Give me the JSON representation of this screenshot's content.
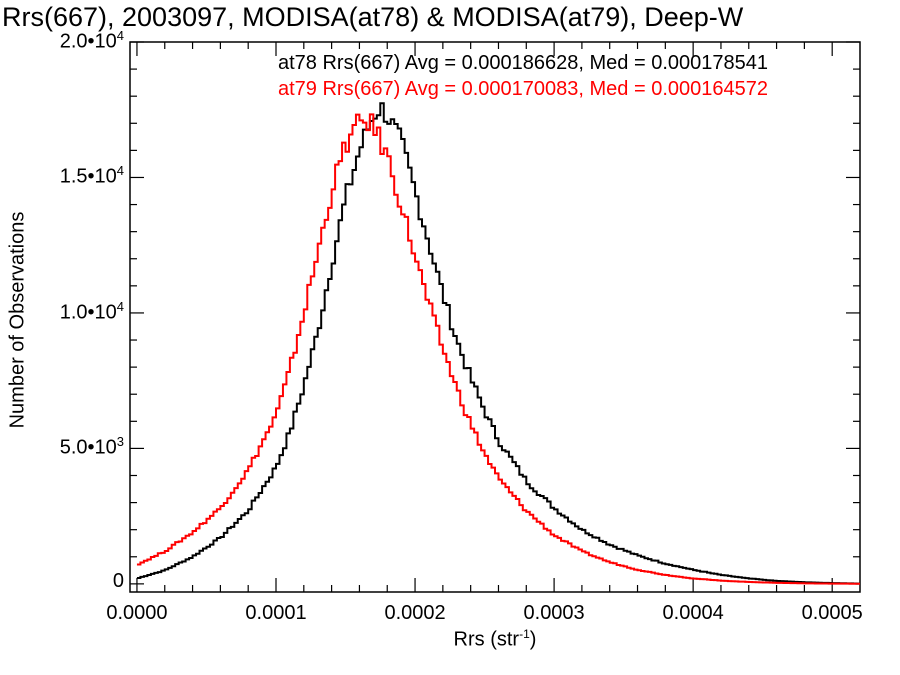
{
  "chart_data": {
    "type": "line",
    "title": "Rrs(667), 2003097, MODISA(at78) & MODISA(at79), Deep-W",
    "xlabel_main": "Rrs (str",
    "xlabel_exp": "-1",
    "xlabel_close": ")",
    "ylabel": "Number of Observations",
    "xlim": [
      -5e-06,
      0.00052
    ],
    "ylim": [
      -300,
      20000
    ],
    "x_ticks": [
      {
        "value": 0.0,
        "label": "0.0000"
      },
      {
        "value": 0.0001,
        "label": "0.0001"
      },
      {
        "value": 0.0002,
        "label": "0.0002"
      },
      {
        "value": 0.0003,
        "label": "0.0003"
      },
      {
        "value": 0.0004,
        "label": "0.0004"
      },
      {
        "value": 0.0005,
        "label": "0.0005"
      }
    ],
    "y_ticks": [
      {
        "value": 0,
        "mantissa": "0",
        "exp": ""
      },
      {
        "value": 5000,
        "mantissa": "5.0•10",
        "exp": "3"
      },
      {
        "value": 10000,
        "mantissa": "1.0•10",
        "exp": "4"
      },
      {
        "value": 15000,
        "mantissa": "1.5•10",
        "exp": "4"
      },
      {
        "value": 20000,
        "mantissa": "2.0•10",
        "exp": "4"
      }
    ],
    "series": [
      {
        "name": "at78",
        "color": "#000000",
        "legend": "at78 Rrs(667) Avg = 0.000186628, Med = 0.000178541",
        "x": [
          0.0,
          2e-05,
          4e-05,
          6e-05,
          8e-05,
          0.0001,
          0.00011,
          0.00012,
          0.00013,
          0.00014,
          0.00015,
          0.00016,
          0.00017,
          0.000175,
          0.00018,
          0.00019,
          0.0002,
          0.00021,
          0.00022,
          0.00023,
          0.00024,
          0.00025,
          0.00026,
          0.00028,
          0.0003,
          0.00032,
          0.00034,
          0.00036,
          0.00038,
          0.0004,
          0.00042,
          0.00044,
          0.00046,
          0.00048,
          0.0005,
          0.00052
        ],
        "y": [
          200,
          500,
          1000,
          1700,
          2700,
          4300,
          5600,
          7300,
          9300,
          11800,
          14200,
          16000,
          17300,
          17600,
          17300,
          16300,
          14500,
          12600,
          10700,
          9000,
          7600,
          6400,
          5300,
          3800,
          2800,
          2000,
          1450,
          1050,
          750,
          520,
          330,
          200,
          110,
          60,
          30,
          10
        ]
      },
      {
        "name": "at79",
        "color": "#ff0000",
        "legend": "at79 Rrs(667) Avg = 0.000170083, Med = 0.000164572",
        "x": [
          0.0,
          2e-05,
          4e-05,
          6e-05,
          8e-05,
          0.0001,
          0.00011,
          0.00012,
          0.00013,
          0.00014,
          0.00015,
          0.00016,
          0.000165,
          0.00017,
          0.00018,
          0.00019,
          0.0002,
          0.00021,
          0.00022,
          0.00023,
          0.00024,
          0.00025,
          0.00026,
          0.00028,
          0.0003,
          0.00032,
          0.00034,
          0.00036,
          0.00038,
          0.0004,
          0.00042,
          0.00044,
          0.00046,
          0.00048,
          0.0005,
          0.00052
        ],
        "y": [
          700,
          1200,
          1900,
          2800,
          4200,
          6200,
          7900,
          10000,
          12200,
          14500,
          16200,
          17000,
          17100,
          16900,
          15800,
          14000,
          12100,
          10300,
          8700,
          7200,
          5900,
          4800,
          3900,
          2700,
          1800,
          1200,
          800,
          520,
          330,
          200,
          120,
          70,
          40,
          20,
          10,
          5
        ]
      }
    ],
    "grid": false,
    "legend_position": "top-right"
  }
}
